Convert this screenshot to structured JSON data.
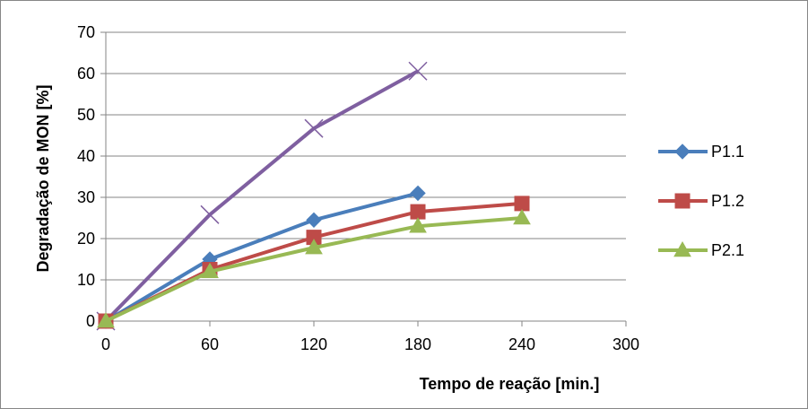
{
  "chart_data": {
    "type": "line",
    "title": "",
    "xlabel": "Tempo de reação [min.]",
    "ylabel": "Degradação de MON [%]",
    "xlim": [
      0,
      300
    ],
    "ylim": [
      0,
      70
    ],
    "x_ticks": [
      0,
      60,
      120,
      180,
      240,
      300
    ],
    "y_ticks": [
      0,
      10,
      20,
      30,
      40,
      50,
      60,
      70
    ],
    "grid": "horizontal",
    "legend_position": "right",
    "series": [
      {
        "name": "",
        "color": "#7F5FA0",
        "marker": "x",
        "in_legend": false,
        "points": [
          [
            0,
            0
          ],
          [
            60,
            25.8
          ],
          [
            120,
            46.7
          ],
          [
            180,
            60.6
          ]
        ]
      },
      {
        "name": "P1.1",
        "color": "#4A7EBB",
        "marker": "diamond",
        "in_legend": true,
        "points": [
          [
            0,
            0
          ],
          [
            60,
            15.0
          ],
          [
            120,
            24.5
          ],
          [
            180,
            31.0
          ]
        ]
      },
      {
        "name": "P1.2",
        "color": "#BE4B48",
        "marker": "square",
        "in_legend": true,
        "points": [
          [
            0,
            0
          ],
          [
            60,
            12.5
          ],
          [
            120,
            20.3
          ],
          [
            180,
            26.5
          ],
          [
            240,
            28.5
          ]
        ]
      },
      {
        "name": "P2.1",
        "color": "#98B954",
        "marker": "triangle",
        "in_legend": true,
        "points": [
          [
            0,
            0
          ],
          [
            60,
            12.0
          ],
          [
            120,
            17.8
          ],
          [
            180,
            23.0
          ],
          [
            240,
            25.0
          ]
        ]
      }
    ]
  }
}
